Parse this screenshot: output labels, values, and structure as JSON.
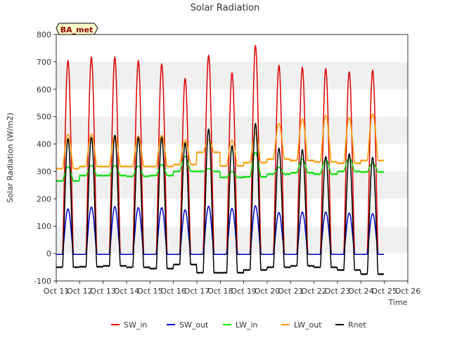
{
  "chart_data": {
    "type": "line",
    "title": "Solar Radiation",
    "xlabel": "Time",
    "ylabel": "Solar Radiation (W/m2)",
    "badge": "BA_met",
    "ylim": [
      -100,
      800
    ],
    "xlim_days": [
      11,
      26
    ],
    "grid": "horizontal bands",
    "legend_placement": "bottom",
    "x_tick_labels": [
      "Oct 11",
      "Oct 12",
      "Oct 13",
      "Oct 14",
      "Oct 15",
      "Oct 16",
      "Oct 17",
      "Oct 18",
      "Oct 19",
      "Oct 20",
      "Oct 21",
      "Oct 22",
      "Oct 23",
      "Oct 24",
      "Oct 25",
      "Oct 26"
    ],
    "y_ticks": [
      -100,
      0,
      100,
      200,
      300,
      400,
      500,
      600,
      700,
      800
    ],
    "days": [
      "Oct 11",
      "Oct 12",
      "Oct 13",
      "Oct 14",
      "Oct 15",
      "Oct 16",
      "Oct 17",
      "Oct 18",
      "Oct 19",
      "Oct 20",
      "Oct 21",
      "Oct 22",
      "Oct 23",
      "Oct 24"
    ],
    "series": [
      {
        "name": "SW_in",
        "color": "#dd0000",
        "daily_peak": [
          705,
          718,
          718,
          705,
          693,
          640,
          725,
          660,
          760,
          688,
          681,
          676,
          664,
          670
        ],
        "night_value": -3
      },
      {
        "name": "SW_out",
        "color": "#0000cc",
        "daily_peak": [
          163,
          170,
          172,
          168,
          168,
          160,
          173,
          165,
          175,
          150,
          152,
          152,
          148,
          146
        ],
        "night_value": -3
      },
      {
        "name": "LW_in",
        "color": "#00dd00",
        "daily_peak": [
          318,
          322,
          322,
          320,
          325,
          355,
          310,
          300,
          370,
          315,
          345,
          345,
          350,
          330
        ],
        "daily_min": [
          265,
          285,
          285,
          282,
          285,
          300,
          300,
          278,
          280,
          290,
          295,
          290,
          300,
          298
        ]
      },
      {
        "name": "LW_out",
        "color": "#ff9900",
        "daily_peak": [
          435,
          437,
          432,
          430,
          432,
          415,
          415,
          415,
          440,
          475,
          492,
          505,
          497,
          510
        ],
        "daily_min": [
          310,
          318,
          318,
          318,
          318,
          325,
          370,
          320,
          332,
          345,
          340,
          335,
          330,
          340
        ]
      },
      {
        "name": "Rnet",
        "color": "#000000",
        "daily_peak": [
          420,
          425,
          432,
          425,
          425,
          405,
          455,
          395,
          475,
          385,
          380,
          355,
          365,
          352
        ],
        "daily_min": [
          -50,
          -48,
          -45,
          -50,
          -55,
          -40,
          -70,
          -70,
          -60,
          -50,
          -45,
          -50,
          -60,
          -75
        ]
      }
    ]
  }
}
